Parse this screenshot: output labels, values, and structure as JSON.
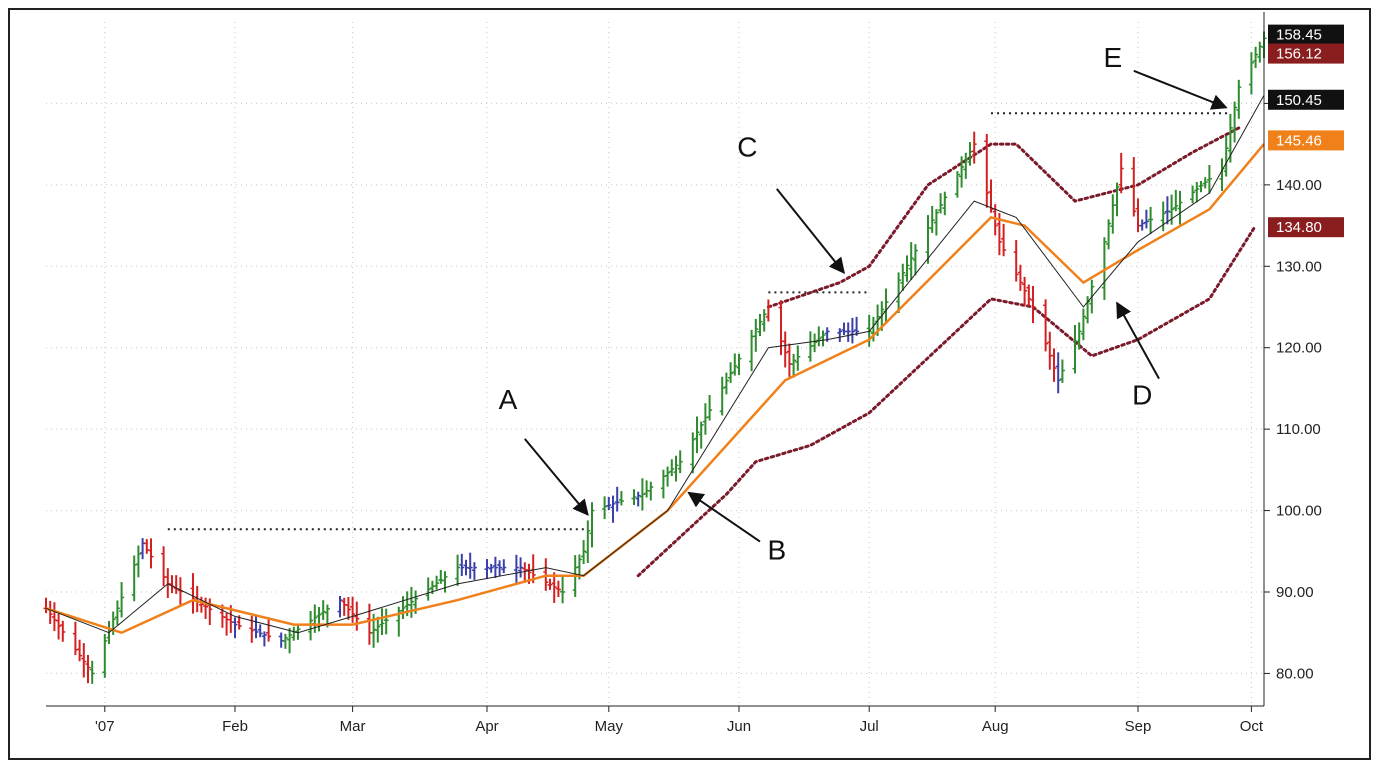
{
  "chart_data": {
    "type": "ohlc-bar",
    "title": "",
    "xlabel": "",
    "ylabel": "",
    "ylim": [
      76,
      160
    ],
    "yticks": [
      80,
      90,
      100,
      110,
      120,
      130,
      140,
      150
    ],
    "ytick_labels": [
      "80.00",
      "90.00",
      "100.00",
      "110.00",
      "120.00",
      "130.00",
      "140.00",
      "150.00"
    ],
    "x_start": "2006-12-18",
    "x_end": "2007-10-04",
    "xticks": [
      {
        "date": "2007-01-01",
        "label": "'07"
      },
      {
        "date": "2007-02-01",
        "label": "Feb"
      },
      {
        "date": "2007-03-01",
        "label": "Mar"
      },
      {
        "date": "2007-04-02",
        "label": "Apr"
      },
      {
        "date": "2007-05-01",
        "label": "May"
      },
      {
        "date": "2007-06-01",
        "label": "Jun"
      },
      {
        "date": "2007-07-02",
        "label": "Jul"
      },
      {
        "date": "2007-08-01",
        "label": "Aug"
      },
      {
        "date": "2007-09-04",
        "label": "Sep"
      },
      {
        "date": "2007-10-01",
        "label": "Oct"
      }
    ],
    "grid": true,
    "colors": {
      "up": "#2e8b2e",
      "neutral": "#3b3fa8",
      "down": "#d42020",
      "sma_fast": "#222222",
      "ema_slow": "#f0801a",
      "envelope": "#7a1a2a",
      "resistance": "#222222"
    },
    "price_key_points": [
      [
        "2006-12-18",
        88
      ],
      [
        "2006-12-29",
        80
      ],
      [
        "2007-01-10",
        96
      ],
      [
        "2007-01-16",
        91
      ],
      [
        "2007-02-01",
        86
      ],
      [
        "2007-02-12",
        84
      ],
      [
        "2007-02-26",
        89
      ],
      [
        "2007-03-05",
        85
      ],
      [
        "2007-03-26",
        93
      ],
      [
        "2007-04-10",
        93
      ],
      [
        "2007-04-20",
        90
      ],
      [
        "2007-04-25",
        95
      ],
      [
        "2007-04-27",
        100
      ],
      [
        "2007-05-09",
        102
      ],
      [
        "2007-05-18",
        106
      ],
      [
        "2007-06-08",
        125
      ],
      [
        "2007-06-13",
        118
      ],
      [
        "2007-06-22",
        122
      ],
      [
        "2007-07-02",
        122
      ],
      [
        "2007-07-12",
        131
      ],
      [
        "2007-07-27",
        145
      ],
      [
        "2007-08-02",
        133
      ],
      [
        "2007-08-10",
        125
      ],
      [
        "2007-08-16",
        116
      ],
      [
        "2007-08-21",
        122
      ],
      [
        "2007-08-27",
        133
      ],
      [
        "2007-08-31",
        142
      ],
      [
        "2007-09-04",
        135
      ],
      [
        "2007-09-12",
        137
      ],
      [
        "2007-09-24",
        142
      ],
      [
        "2007-09-28",
        152
      ],
      [
        "2007-10-04",
        158
      ]
    ],
    "sma_key_points": [
      [
        "2006-12-18",
        88
      ],
      [
        "2007-01-02",
        85
      ],
      [
        "2007-01-16",
        91
      ],
      [
        "2007-02-01",
        87
      ],
      [
        "2007-02-16",
        85
      ],
      [
        "2007-03-01",
        87
      ],
      [
        "2007-03-26",
        91
      ],
      [
        "2007-04-16",
        93
      ],
      [
        "2007-04-25",
        92
      ],
      [
        "2007-05-15",
        100
      ],
      [
        "2007-06-08",
        120
      ],
      [
        "2007-06-22",
        121
      ],
      [
        "2007-07-02",
        122
      ],
      [
        "2007-07-27",
        138
      ],
      [
        "2007-08-06",
        136
      ],
      [
        "2007-08-22",
        125
      ],
      [
        "2007-09-04",
        133
      ],
      [
        "2007-09-21",
        139
      ],
      [
        "2007-10-04",
        151
      ]
    ],
    "ema_key_points": [
      [
        "2006-12-18",
        88
      ],
      [
        "2007-01-05",
        85
      ],
      [
        "2007-01-22",
        89
      ],
      [
        "2007-02-15",
        86
      ],
      [
        "2007-03-01",
        86
      ],
      [
        "2007-03-26",
        89
      ],
      [
        "2007-04-16",
        92
      ],
      [
        "2007-04-25",
        92
      ],
      [
        "2007-05-15",
        100
      ],
      [
        "2007-06-12",
        116
      ],
      [
        "2007-07-02",
        121
      ],
      [
        "2007-07-31",
        136
      ],
      [
        "2007-08-08",
        135
      ],
      [
        "2007-08-22",
        128
      ],
      [
        "2007-09-04",
        132
      ],
      [
        "2007-09-21",
        137
      ],
      [
        "2007-10-04",
        145
      ]
    ],
    "upper_envelope": [
      [
        "2007-06-08",
        125
      ],
      [
        "2007-06-25",
        128
      ],
      [
        "2007-07-02",
        130
      ],
      [
        "2007-07-16",
        140
      ],
      [
        "2007-07-31",
        145
      ],
      [
        "2007-08-06",
        145
      ],
      [
        "2007-08-20",
        138
      ],
      [
        "2007-09-04",
        140
      ],
      [
        "2007-09-17",
        144
      ],
      [
        "2007-09-28",
        147
      ]
    ],
    "lower_envelope": [
      [
        "2007-05-08",
        92
      ],
      [
        "2007-05-29",
        102
      ],
      [
        "2007-06-05",
        106
      ],
      [
        "2007-06-18",
        108
      ],
      [
        "2007-07-02",
        112
      ],
      [
        "2007-07-31",
        126
      ],
      [
        "2007-08-10",
        125
      ],
      [
        "2007-08-24",
        119
      ],
      [
        "2007-09-04",
        121
      ],
      [
        "2007-09-21",
        126
      ],
      [
        "2007-10-02",
        135
      ]
    ],
    "resistance_lines": [
      {
        "from": "2007-01-16",
        "to": "2007-04-26",
        "y": 97.7
      },
      {
        "from": "2007-06-08",
        "to": "2007-07-02",
        "y": 126.8
      },
      {
        "from": "2007-07-31",
        "to": "2007-09-26",
        "y": 148.8
      }
    ],
    "price_tags": [
      {
        "value": "158.45",
        "y": 158.45,
        "color": "#111111"
      },
      {
        "value": "156.12",
        "y": 156.12,
        "color": "#8a1d1d"
      },
      {
        "value": "150.45",
        "y": 150.45,
        "color": "#111111"
      },
      {
        "value": "145.46",
        "y": 145.46,
        "color": "#f0801a"
      },
      {
        "value": "134.80",
        "y": 134.8,
        "color": "#8a1d1d"
      }
    ],
    "annotations": [
      {
        "text": "A",
        "label_at": [
          "2007-04-07",
          112.5
        ],
        "arrow_from": [
          "2007-04-11",
          108.8
        ],
        "arrow_to": [
          "2007-04-26",
          99.5
        ]
      },
      {
        "text": "B",
        "label_at": [
          "2007-06-10",
          94.0
        ],
        "arrow_from": [
          "2007-06-06",
          96.2
        ],
        "arrow_to": [
          "2007-05-20",
          102.2
        ]
      },
      {
        "text": "C",
        "label_at": [
          "2007-06-03",
          143.5
        ],
        "arrow_from": [
          "2007-06-10",
          139.5
        ],
        "arrow_to": [
          "2007-06-26",
          129.2
        ]
      },
      {
        "text": "D",
        "label_at": [
          "2007-09-05",
          113.0
        ],
        "arrow_from": [
          "2007-09-09",
          116.2
        ],
        "arrow_to": [
          "2007-08-30",
          125.5
        ]
      },
      {
        "text": "E",
        "label_at": [
          "2007-08-29",
          154.5
        ],
        "arrow_from": [
          "2007-09-03",
          154.0
        ],
        "arrow_to": [
          "2007-09-25",
          149.5
        ]
      }
    ]
  }
}
